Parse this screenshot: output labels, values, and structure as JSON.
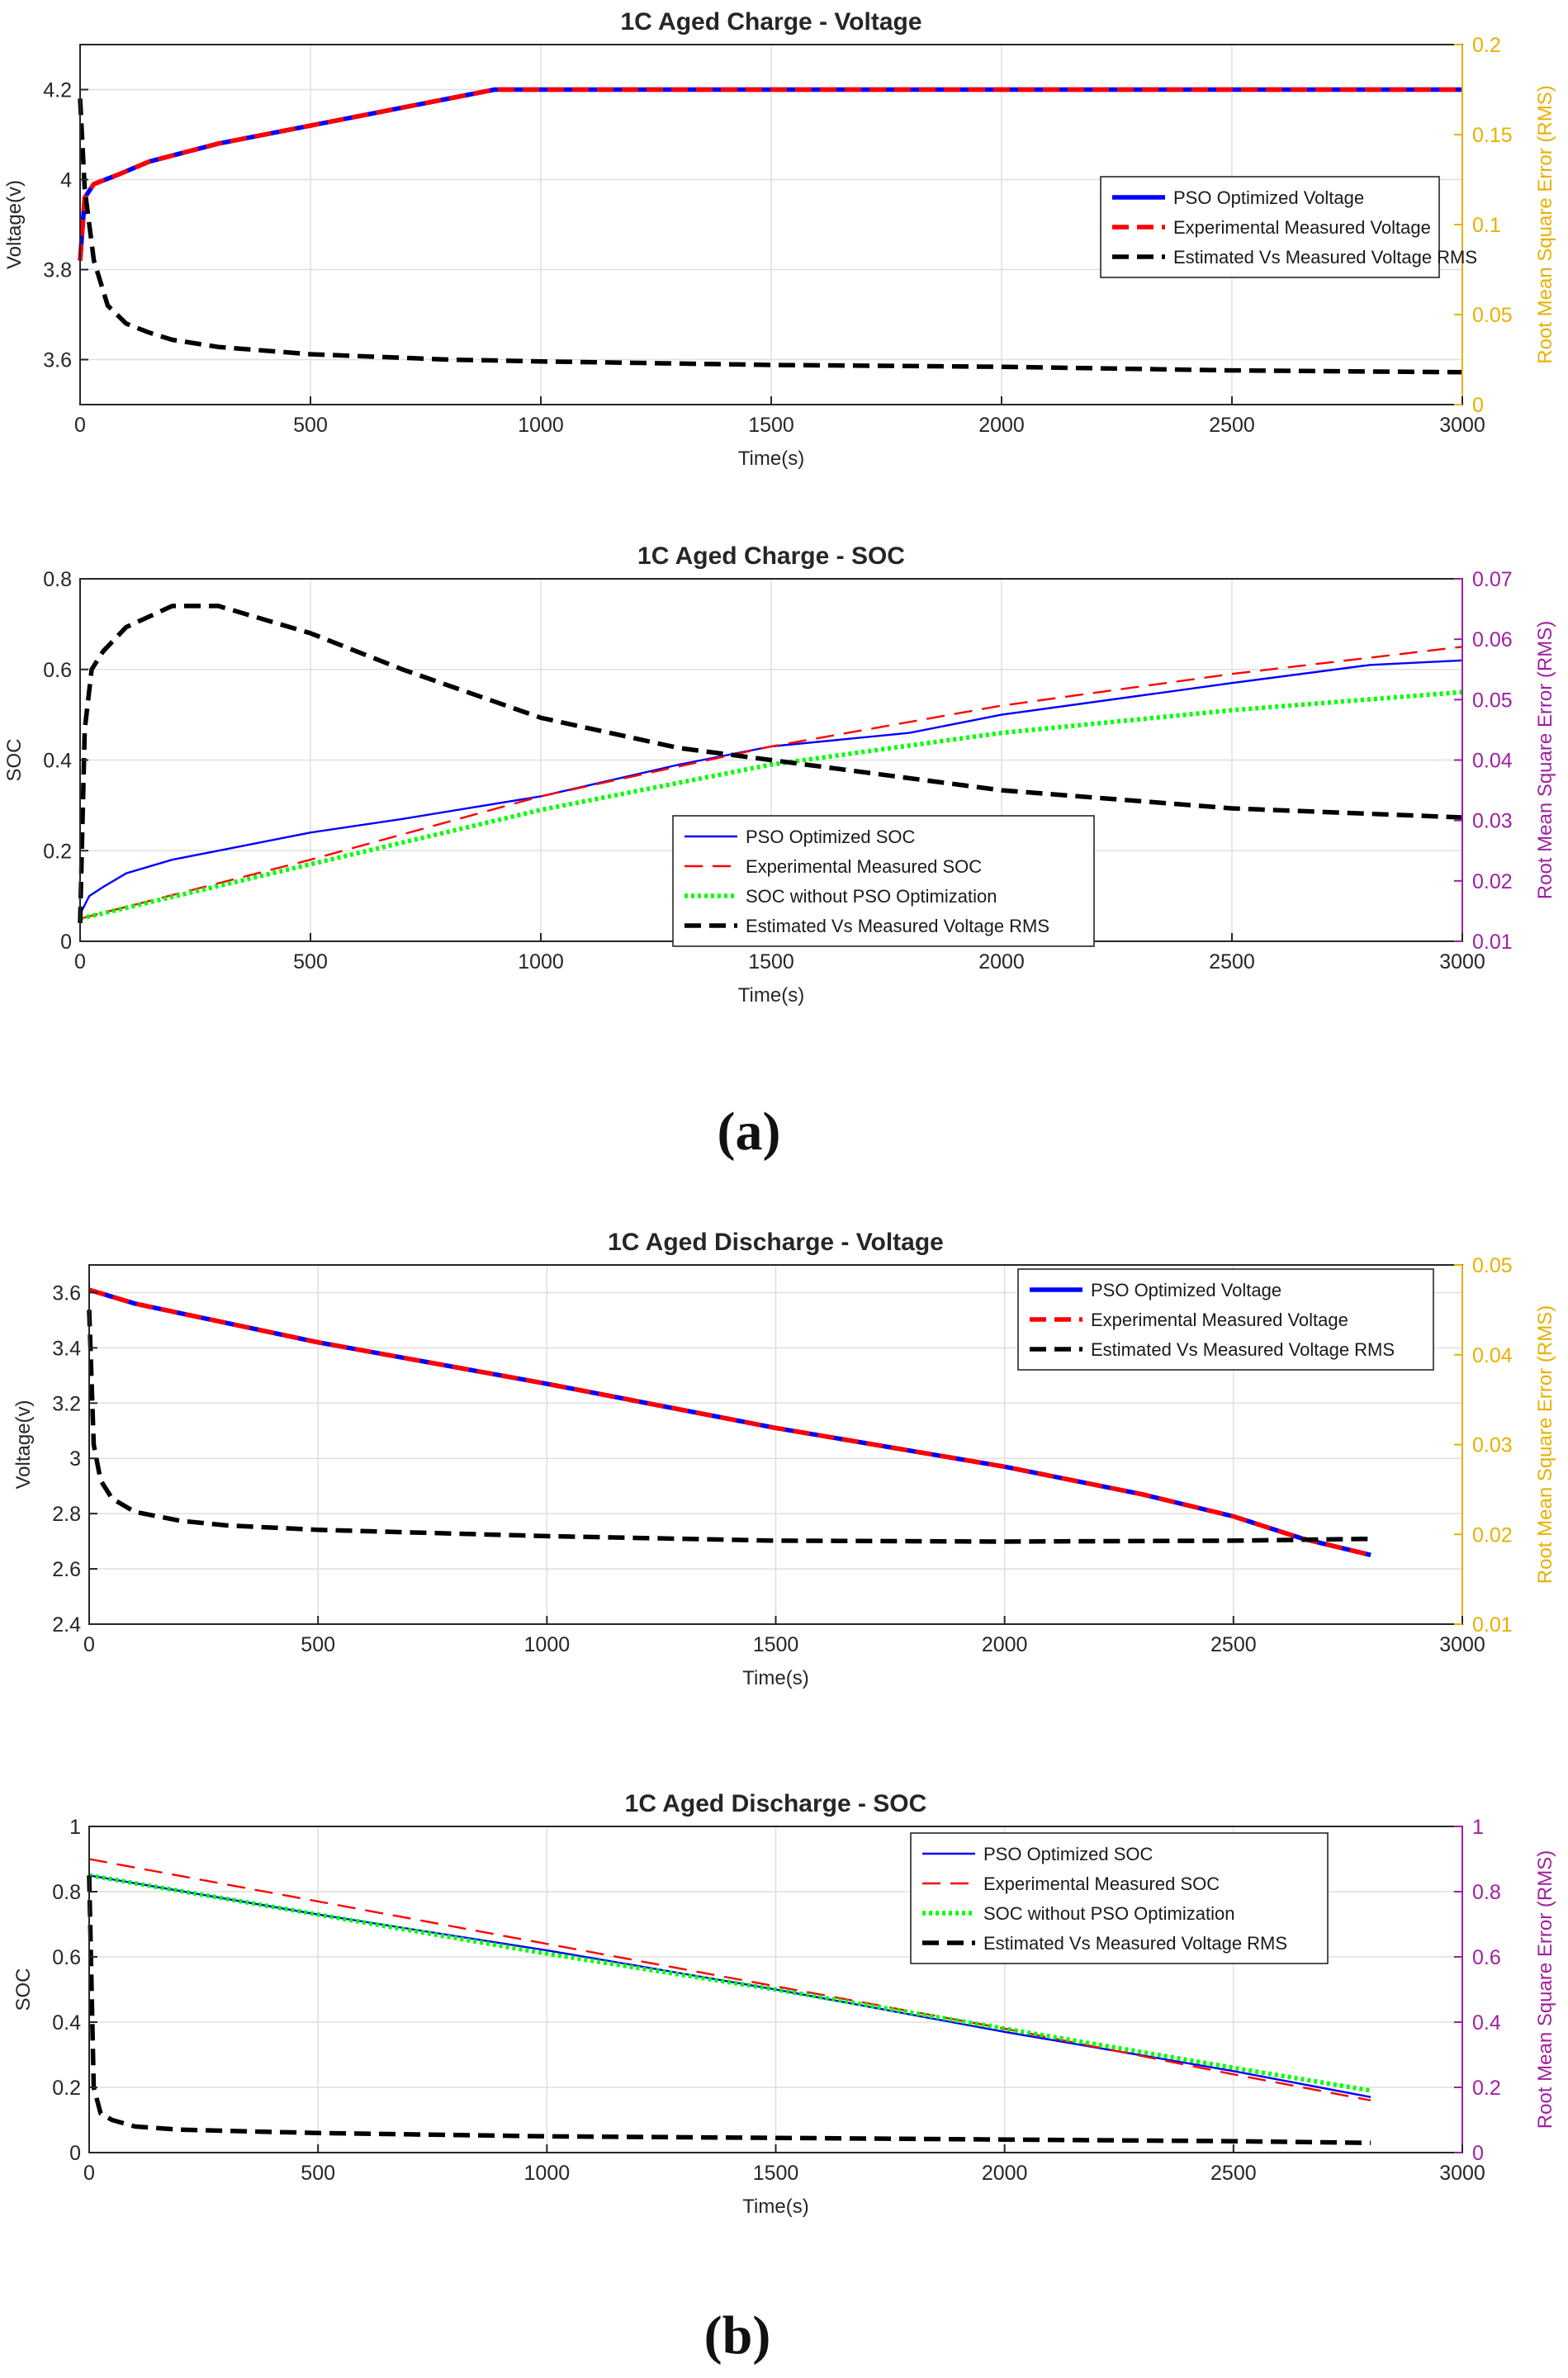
{
  "panels": [
    {
      "label": "(a)"
    },
    {
      "label": "(b)"
    }
  ],
  "chart_data": [
    {
      "type": "line",
      "title": "1C Aged Charge - Voltage",
      "xlabel": "Time(s)",
      "ylabel": "Voltage(v)",
      "y2label": "Root Mean Square Error (RMS)",
      "xlim": [
        0,
        3000
      ],
      "ylim": [
        3.5,
        4.3
      ],
      "y2lim": [
        0,
        0.2
      ],
      "xticks": [
        0,
        500,
        1000,
        1500,
        2000,
        2500,
        3000
      ],
      "yticks": [
        3.6,
        3.8,
        4,
        4.2
      ],
      "y2ticks": [
        0,
        0.05,
        0.1,
        0.15,
        0.2
      ],
      "grid": true,
      "legend_position": "right",
      "series": [
        {
          "name": "PSO Optimized Voltage",
          "axis": "left",
          "color": "#0000ff",
          "style": "solid-thick",
          "x": [
            0,
            10,
            30,
            80,
            150,
            300,
            600,
            900,
            950,
            1000,
            1500,
            2000,
            2500,
            3000
          ],
          "y": [
            3.82,
            3.96,
            3.99,
            4.01,
            4.04,
            4.08,
            4.14,
            4.2,
            4.2,
            4.2,
            4.2,
            4.2,
            4.2,
            4.2
          ]
        },
        {
          "name": "Experimental Measured Voltage",
          "axis": "left",
          "color": "#ff0000",
          "style": "dashed-thick",
          "x": [
            0,
            10,
            30,
            80,
            150,
            300,
            600,
            900,
            950,
            1000,
            1500,
            2000,
            2500,
            3000
          ],
          "y": [
            3.82,
            3.96,
            3.99,
            4.01,
            4.04,
            4.08,
            4.14,
            4.2,
            4.2,
            4.2,
            4.2,
            4.2,
            4.2,
            4.2
          ]
        },
        {
          "name": "Estimated Vs Measured Voltage RMS",
          "axis": "right",
          "color": "#000000",
          "style": "dashed-thick",
          "x": [
            0,
            10,
            30,
            60,
            100,
            150,
            200,
            300,
            500,
            800,
            1000,
            1500,
            2000,
            2500,
            3000
          ],
          "y": [
            0.17,
            0.12,
            0.08,
            0.055,
            0.045,
            0.04,
            0.036,
            0.032,
            0.028,
            0.025,
            0.024,
            0.022,
            0.021,
            0.019,
            0.018
          ]
        }
      ]
    },
    {
      "type": "line",
      "title": "1C Aged Charge - SOC",
      "xlabel": "Time(s)",
      "ylabel": "SOC",
      "y2label": "Root Mean Square Error (RMS)",
      "xlim": [
        0,
        3000
      ],
      "ylim": [
        0,
        0.8
      ],
      "y2lim": [
        0.01,
        0.07
      ],
      "xticks": [
        0,
        500,
        1000,
        1500,
        2000,
        2500,
        3000
      ],
      "yticks": [
        0,
        0.2,
        0.4,
        0.6,
        0.8
      ],
      "y2ticks": [
        0.01,
        0.02,
        0.03,
        0.04,
        0.05,
        0.06,
        0.07
      ],
      "grid": true,
      "legend_position": "lower-center",
      "series": [
        {
          "name": "PSO Optimized SOC",
          "axis": "left",
          "color": "#0000ff",
          "style": "solid-thin",
          "x": [
            0,
            20,
            50,
            100,
            200,
            300,
            500,
            700,
            1000,
            1300,
            1500,
            1800,
            2000,
            2500,
            2800,
            3000
          ],
          "y": [
            0.06,
            0.1,
            0.12,
            0.15,
            0.18,
            0.2,
            0.24,
            0.27,
            0.32,
            0.39,
            0.43,
            0.46,
            0.5,
            0.57,
            0.61,
            0.62
          ]
        },
        {
          "name": "Experimental Measured SOC",
          "axis": "left",
          "color": "#ff0000",
          "style": "dashed-thin",
          "x": [
            0,
            500,
            1000,
            1500,
            2000,
            2500,
            3000
          ],
          "y": [
            0.05,
            0.18,
            0.32,
            0.43,
            0.52,
            0.59,
            0.65
          ]
        },
        {
          "name": "SOC without PSO Optimization",
          "axis": "left",
          "color": "#00ff00",
          "style": "dotted",
          "x": [
            0,
            500,
            1000,
            1500,
            2000,
            2500,
            3000
          ],
          "y": [
            0.05,
            0.17,
            0.29,
            0.39,
            0.46,
            0.51,
            0.55
          ]
        },
        {
          "name": "Estimated Vs Measured Voltage RMS",
          "axis": "right",
          "color": "#000000",
          "style": "dashed-thick",
          "x": [
            0,
            10,
            25,
            50,
            100,
            200,
            300,
            500,
            700,
            1000,
            1300,
            1500,
            1800,
            2000,
            2500,
            3000
          ],
          "y": [
            0.013,
            0.045,
            0.055,
            0.058,
            0.062,
            0.0655,
            0.0655,
            0.061,
            0.055,
            0.047,
            0.042,
            0.04,
            0.037,
            0.035,
            0.032,
            0.0305
          ]
        }
      ]
    },
    {
      "type": "line",
      "title": "1C Aged Discharge - Voltage",
      "xlabel": "Time(s)",
      "ylabel": "Voltage(v)",
      "y2label": "Root Mean Square Error (RMS)",
      "xlim": [
        0,
        3000
      ],
      "ylim": [
        2.4,
        3.7
      ],
      "y2lim": [
        0.01,
        0.05
      ],
      "xticks": [
        0,
        500,
        1000,
        1500,
        2000,
        2500,
        3000
      ],
      "yticks": [
        2.4,
        2.6,
        2.8,
        3,
        3.2,
        3.4,
        3.6
      ],
      "y2ticks": [
        0.01,
        0.02,
        0.03,
        0.04,
        0.05
      ],
      "grid": true,
      "legend_position": "top-right",
      "series": [
        {
          "name": "PSO Optimized Voltage",
          "axis": "left",
          "color": "#0000ff",
          "style": "solid-thick",
          "x": [
            0,
            100,
            500,
            1000,
            1500,
            2000,
            2300,
            2500,
            2650,
            2800
          ],
          "y": [
            3.61,
            3.56,
            3.42,
            3.27,
            3.11,
            2.97,
            2.87,
            2.79,
            2.71,
            2.65
          ]
        },
        {
          "name": "Experimental Measured Voltage",
          "axis": "left",
          "color": "#ff0000",
          "style": "dashed-thick",
          "x": [
            0,
            100,
            500,
            1000,
            1500,
            2000,
            2300,
            2500,
            2650,
            2800
          ],
          "y": [
            3.61,
            3.56,
            3.42,
            3.27,
            3.11,
            2.97,
            2.87,
            2.79,
            2.71,
            2.65
          ]
        },
        {
          "name": "Estimated Vs Measured Voltage RMS",
          "axis": "right",
          "color": "#000000",
          "style": "dashed-thick",
          "x": [
            0,
            10,
            25,
            50,
            100,
            200,
            300,
            500,
            1000,
            1500,
            2000,
            2500,
            2800
          ],
          "y": [
            0.045,
            0.03,
            0.026,
            0.024,
            0.0225,
            0.0215,
            0.021,
            0.0205,
            0.0198,
            0.0193,
            0.0192,
            0.0193,
            0.0195
          ]
        }
      ]
    },
    {
      "type": "line",
      "title": "1C Aged Discharge - SOC",
      "xlabel": "Time(s)",
      "ylabel": "SOC",
      "y2label": "Root Mean Square Error (RMS)",
      "xlim": [
        0,
        3000
      ],
      "ylim": [
        0,
        1
      ],
      "y2lim": [
        0,
        1
      ],
      "xticks": [
        0,
        500,
        1000,
        1500,
        2000,
        2500,
        3000
      ],
      "yticks": [
        0,
        0.2,
        0.4,
        0.6,
        0.8,
        1
      ],
      "y2ticks": [
        0,
        0.2,
        0.4,
        0.6,
        0.8,
        1
      ],
      "grid": true,
      "legend_position": "top-right",
      "series": [
        {
          "name": "PSO Optimized SOC",
          "axis": "left",
          "color": "#0000ff",
          "style": "solid-thin",
          "x": [
            0,
            500,
            1000,
            1500,
            2000,
            2500,
            2800
          ],
          "y": [
            0.85,
            0.73,
            0.62,
            0.5,
            0.37,
            0.25,
            0.17
          ]
        },
        {
          "name": "Experimental Measured SOC",
          "axis": "left",
          "color": "#ff0000",
          "style": "dashed-thin",
          "x": [
            0,
            500,
            1000,
            1500,
            2000,
            2500,
            2800
          ],
          "y": [
            0.9,
            0.77,
            0.64,
            0.51,
            0.38,
            0.24,
            0.16
          ]
        },
        {
          "name": "SOC without PSO Optimization",
          "axis": "left",
          "color": "#00ff00",
          "style": "dotted",
          "x": [
            0,
            500,
            1000,
            1500,
            2000,
            2500,
            2800
          ],
          "y": [
            0.85,
            0.73,
            0.61,
            0.5,
            0.38,
            0.26,
            0.19
          ]
        },
        {
          "name": "Estimated Vs Measured Voltage RMS",
          "axis": "right",
          "color": "#000000",
          "style": "dashed-thick",
          "x": [
            0,
            10,
            25,
            50,
            100,
            200,
            500,
            1000,
            1500,
            2000,
            2500,
            2800
          ],
          "y": [
            0.85,
            0.2,
            0.12,
            0.1,
            0.08,
            0.07,
            0.06,
            0.05,
            0.045,
            0.04,
            0.035,
            0.03
          ]
        }
      ]
    }
  ]
}
